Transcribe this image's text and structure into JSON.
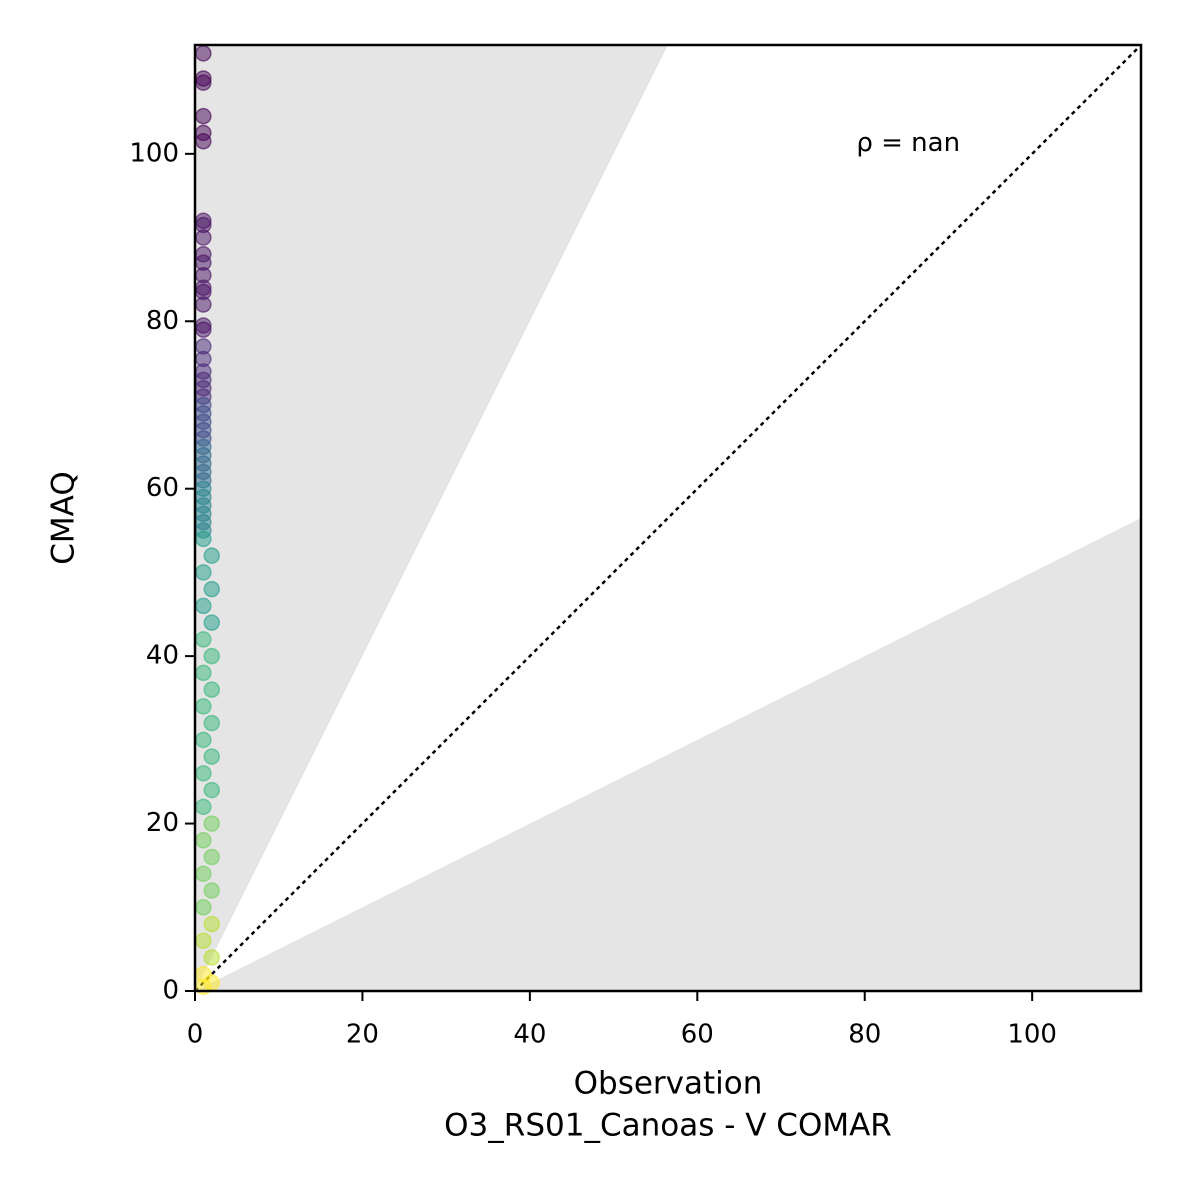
{
  "chart_data": {
    "type": "scatter",
    "xlabel": [
      "Observation",
      "O3_RS01_Canoas - V COMAR"
    ],
    "ylabel": "CMAQ",
    "annotation": {
      "text": "ρ = nan",
      "x": 79,
      "y": 101
    },
    "xlim": [
      0,
      113
    ],
    "ylim": [
      0,
      113
    ],
    "xticks": [
      0,
      20,
      40,
      60,
      80,
      100
    ],
    "yticks": [
      0,
      20,
      40,
      60,
      80,
      100
    ],
    "reference_factor": 2,
    "series": [
      {
        "x": [
          1,
          1,
          1,
          1,
          1,
          1,
          1,
          1,
          1,
          1,
          1,
          1,
          1,
          1,
          1,
          1,
          1,
          1,
          1,
          1,
          1,
          1,
          1,
          1,
          1,
          1,
          1,
          1,
          1,
          1,
          1,
          1,
          1,
          1,
          1,
          1,
          1,
          1,
          1,
          1,
          2,
          1,
          2,
          1,
          2,
          1,
          2,
          1,
          2,
          1,
          2,
          1,
          2,
          1,
          2,
          1,
          2,
          1,
          2,
          1,
          2,
          1,
          2,
          1,
          2,
          1,
          2,
          1
        ],
        "values": [
          112,
          109,
          108.5,
          104.5,
          102.5,
          101.5,
          92,
          91.5,
          90,
          88,
          87,
          85.5,
          84,
          83.5,
          82,
          79.5,
          79,
          77,
          75.5,
          74,
          73,
          72,
          71,
          70,
          69,
          68,
          67,
          66,
          65,
          64,
          63,
          62,
          61,
          60,
          59,
          58,
          57,
          56,
          55,
          54,
          52,
          50,
          48,
          46,
          44,
          42,
          40,
          38,
          36,
          34,
          32,
          30,
          28,
          26,
          24,
          22,
          20,
          18,
          16,
          14,
          12,
          10,
          8,
          6,
          4,
          2,
          1,
          0.5
        ],
        "colors": [
          "#440154",
          "#440154",
          "#440154",
          "#440154",
          "#440154",
          "#440154",
          "#471164",
          "#471164",
          "#471164",
          "#471164",
          "#471164",
          "#471164",
          "#471164",
          "#471164",
          "#471164",
          "#471164",
          "#471164",
          "#482878",
          "#482878",
          "#482878",
          "#482878",
          "#482878",
          "#482878",
          "#3e4a89",
          "#3e4a89",
          "#3e4a89",
          "#3e4a89",
          "#3e4a89",
          "#31688e",
          "#31688e",
          "#31688e",
          "#31688e",
          "#31688e",
          "#26828e",
          "#26828e",
          "#26828e",
          "#26828e",
          "#26828e",
          "#26828e",
          "#1f9e89",
          "#1f9e89",
          "#1f9e89",
          "#1f9e89",
          "#1f9e89",
          "#1f9e89",
          "#35b779",
          "#35b779",
          "#35b779",
          "#35b779",
          "#35b779",
          "#35b779",
          "#35b779",
          "#35b779",
          "#35b779",
          "#35b779",
          "#35b779",
          "#6ece58",
          "#6ece58",
          "#6ece58",
          "#6ece58",
          "#6ece58",
          "#6ece58",
          "#b5de2b",
          "#b5de2b",
          "#b5de2b",
          "#fde725",
          "#fde725",
          "#fde725"
        ]
      }
    ]
  }
}
